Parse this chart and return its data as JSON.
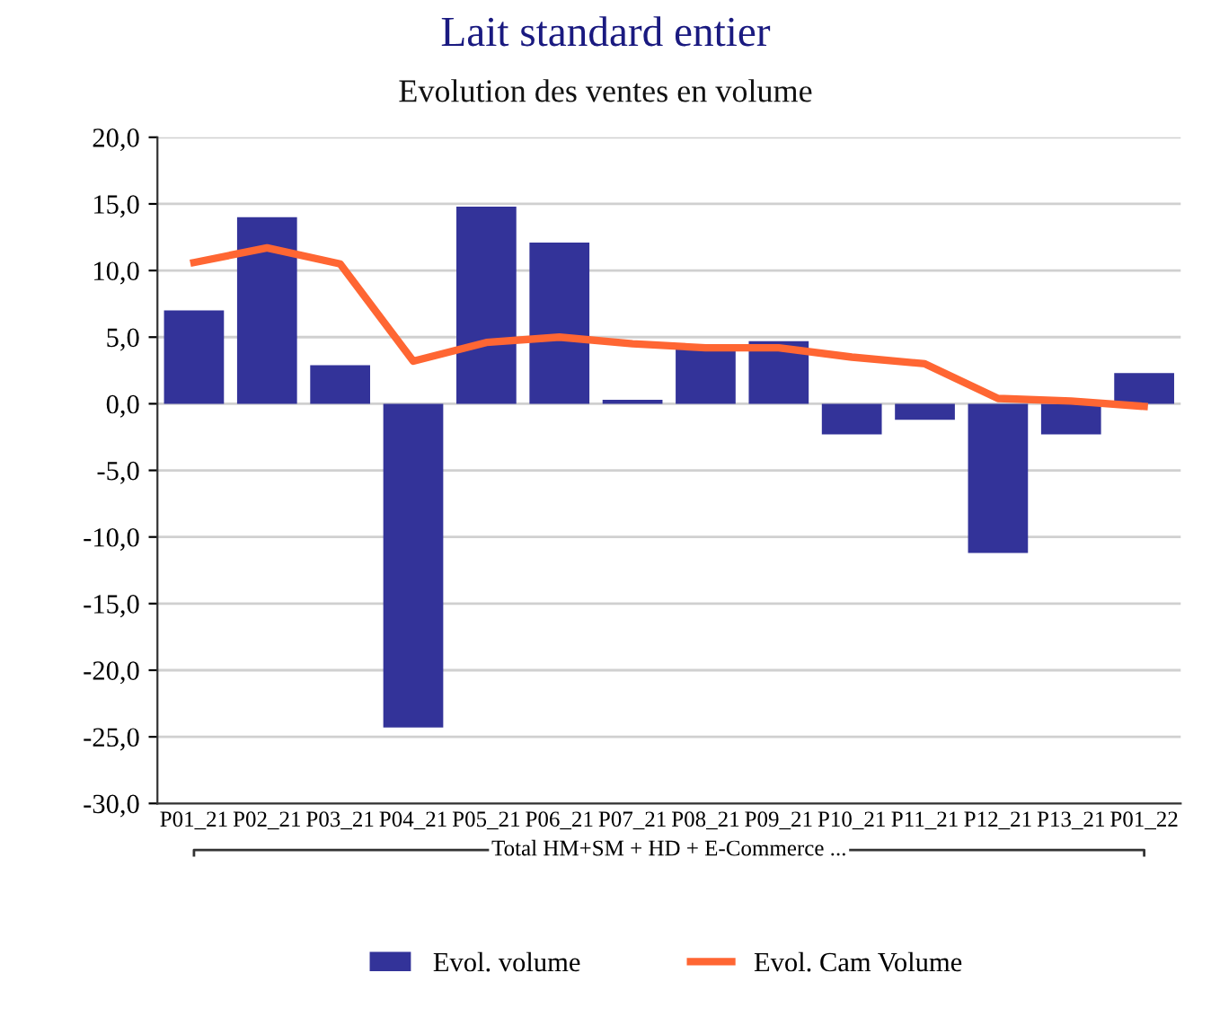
{
  "chart_data": {
    "type": "bar",
    "title": "Lait standard entier",
    "subtitle": "Evolution des ventes en volume",
    "categories": [
      "P01_21",
      "P02_21",
      "P03_21",
      "P04_21",
      "P05_21",
      "P06_21",
      "P07_21",
      "P08_21",
      "P09_21",
      "P10_21",
      "P11_21",
      "P12_21",
      "P13_21",
      "P01_22"
    ],
    "series": [
      {
        "name": "Evol. volume",
        "color": "#333399",
        "values": [
          7.0,
          14.0,
          2.9,
          -24.3,
          14.8,
          12.1,
          0.3,
          4.1,
          4.7,
          -2.3,
          -1.2,
          -11.2,
          -2.3,
          2.3
        ]
      },
      {
        "name": "Evol. Cam Volume",
        "type": "line",
        "color": "#ff6633",
        "values": [
          10.6,
          11.7,
          10.5,
          3.2,
          4.6,
          5.0,
          4.5,
          4.2,
          4.2,
          3.5,
          3.0,
          0.4,
          0.2,
          -0.2
        ]
      }
    ],
    "annotations": [
      "Total HM+SM + HD + E-Commerce ..."
    ],
    "ylim": [
      -30,
      20
    ],
    "yticks": [
      {
        "value": -30,
        "label": "-30,0"
      },
      {
        "value": -25,
        "label": "-25,0"
      },
      {
        "value": -20,
        "label": "-20,0"
      },
      {
        "value": -15,
        "label": "-15,0"
      },
      {
        "value": -10,
        "label": "-10,0"
      },
      {
        "value": -5,
        "label": "-5,0"
      },
      {
        "value": 0,
        "label": "0,0"
      },
      {
        "value": 5,
        "label": "5,0"
      },
      {
        "value": 10,
        "label": "10,0"
      },
      {
        "value": 15,
        "label": "15,0"
      },
      {
        "value": 20,
        "label": "20,0"
      }
    ],
    "grid": "y",
    "legend": "bottom",
    "marker": "none",
    "line_style": "solid"
  }
}
